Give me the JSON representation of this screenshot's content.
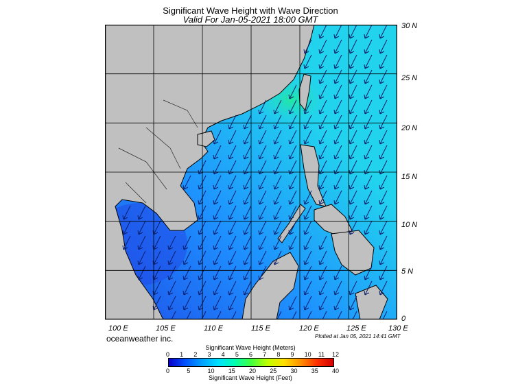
{
  "header": {
    "title": "Significant Wave Height with Wave Direction",
    "subtitle": "Valid For Jan-05-2021 18:00 GMT"
  },
  "map": {
    "lon_range": [
      100,
      130
    ],
    "lat_range": [
      0,
      30
    ],
    "lat_labels": [
      "30 N",
      "25 N",
      "20 N",
      "15 N",
      "10 N",
      "5 N",
      "0"
    ],
    "lon_labels": [
      "100 E",
      "105 E",
      "110 E",
      "115 E",
      "120 E",
      "125 E",
      "130 E"
    ],
    "grid": true,
    "wave_direction": "from north-east (arrows pointing south-west)",
    "colors": {
      "land": "#c0c0c0",
      "sea_low": "#1f4fe8",
      "sea_mid": "#1e90ff",
      "sea_high": "#22d3ee",
      "sea_peak": "#20e8a0"
    }
  },
  "footer": {
    "credit": "oceanweather inc.",
    "plotted": "Plotted at Jan 05, 2021 14:41 GMT"
  },
  "colorbar": {
    "title_top": "Significant Wave Height (Meters)",
    "meters": [
      "0",
      "1",
      "2",
      "3",
      "4",
      "5",
      "6",
      "7",
      "8",
      "9",
      "10",
      "11",
      "12"
    ],
    "feet": [
      "0",
      "5",
      "10",
      "15",
      "20",
      "25",
      "30",
      "35",
      "40"
    ],
    "title_bottom": "Significant Wave Height (Feet)",
    "gradient_colors": [
      "#0a00c8",
      "#0050ff",
      "#00a0ff",
      "#00e0ff",
      "#00ffb0",
      "#40ff40",
      "#c0ff00",
      "#ffe000",
      "#ff9000",
      "#ff3000",
      "#d00000"
    ]
  }
}
